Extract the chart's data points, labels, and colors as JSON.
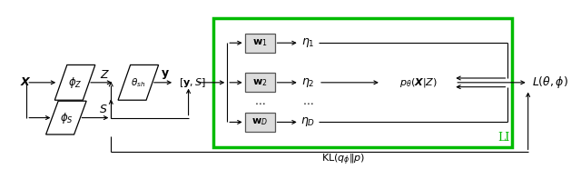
{
  "fig_width": 6.4,
  "fig_height": 1.86,
  "dpi": 100,
  "bg_color": "#ffffff",
  "green_color": "#00bb00",
  "gray_box_color": "#cccccc"
}
